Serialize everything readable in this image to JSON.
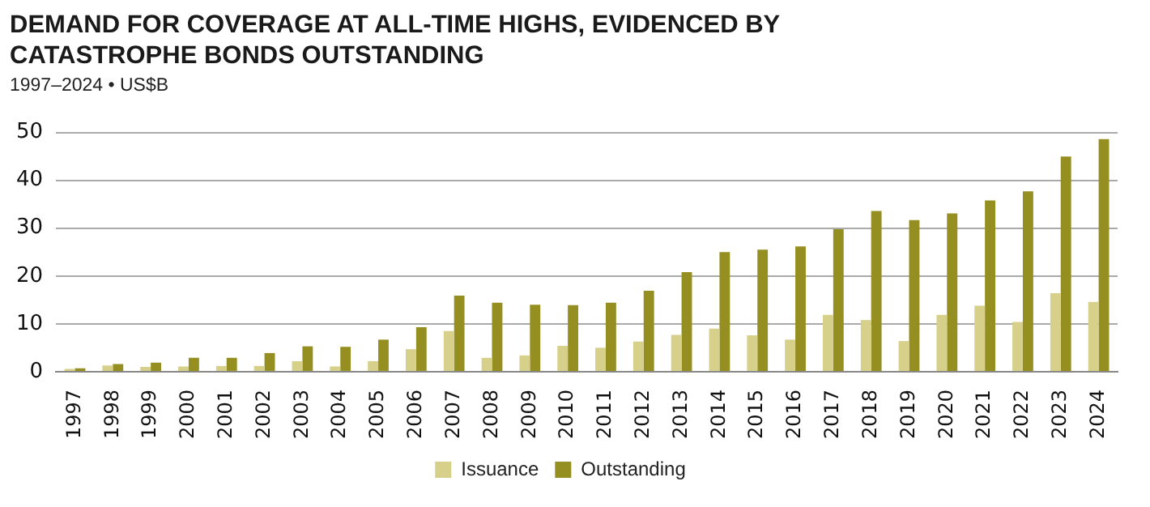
{
  "chart_data": {
    "type": "bar",
    "title": "DEMAND FOR COVERAGE AT ALL-TIME HIGHS, EVIDENCED BY CATASTROPHE BONDS OUTSTANDING",
    "subtitle": "1997–2024 • US$B",
    "categories": [
      "1997",
      "1998",
      "1999",
      "2000",
      "2001",
      "2002",
      "2003",
      "2004",
      "2005",
      "2006",
      "2007",
      "2008",
      "2009",
      "2010",
      "2011",
      "2012",
      "2013",
      "2014",
      "2015",
      "2016",
      "2017",
      "2018",
      "2019",
      "2020",
      "2021",
      "2022",
      "2023",
      "2024"
    ],
    "series": [
      {
        "name": "Issuance",
        "color": "#d6d08a",
        "values": [
          0.6,
          1.3,
          1.0,
          1.1,
          1.2,
          1.2,
          2.2,
          1.1,
          2.2,
          4.7,
          8.5,
          2.9,
          3.4,
          5.4,
          5.0,
          6.3,
          7.7,
          9.0,
          7.6,
          6.7,
          11.9,
          10.8,
          6.4,
          11.9,
          13.8,
          10.4,
          16.4,
          14.6
        ]
      },
      {
        "name": "Outstanding",
        "color": "#958f22",
        "values": [
          0.7,
          1.6,
          1.9,
          2.9,
          2.9,
          3.9,
          5.3,
          5.2,
          6.7,
          9.3,
          15.9,
          14.4,
          14.0,
          13.9,
          14.4,
          16.9,
          20.8,
          25.0,
          25.5,
          26.2,
          29.8,
          33.6,
          31.7,
          33.1,
          35.8,
          37.7,
          45.0,
          48.6
        ]
      }
    ],
    "ylim": [
      0,
      50
    ],
    "yticks": [
      0,
      10,
      20,
      30,
      40,
      50
    ],
    "grid": "y",
    "legend": "bottom"
  }
}
